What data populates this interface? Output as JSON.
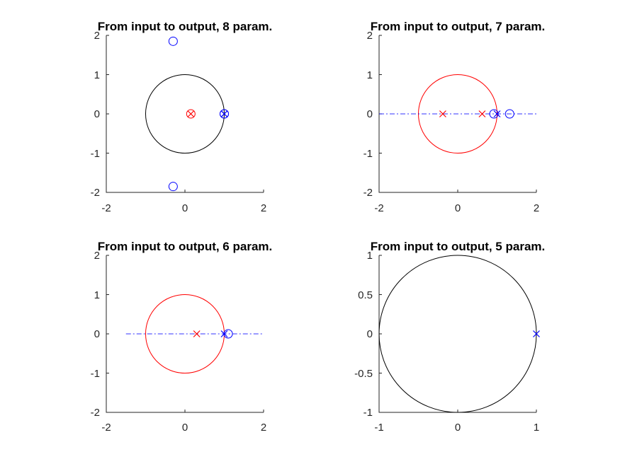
{
  "figure_background": "#ffffff",
  "chart_data": [
    {
      "type": "scatter",
      "title": "From input to output, 8 param.",
      "xlim": [
        -2,
        2
      ],
      "ylim": [
        -2,
        2
      ],
      "xticks": [
        "-2",
        "0",
        "2"
      ],
      "yticks": [
        "2",
        "1",
        "0",
        "-1",
        "-2"
      ],
      "grid": false,
      "unit_circle_color": "#000000",
      "real_axis_line": false,
      "zeros": {
        "color": "#0000ff",
        "points": [
          [
            -0.3,
            1.85
          ],
          [
            -0.3,
            -1.85
          ],
          [
            1.0,
            0.0
          ],
          [
            1.0,
            0.0
          ]
        ]
      },
      "poles": {
        "color": "#0000ff",
        "points": [
          [
            1.0,
            0.0
          ],
          [
            1.0,
            0.0
          ]
        ]
      },
      "red_zeros": {
        "color": "#ff0000",
        "points": [
          [
            0.15,
            0.0
          ]
        ]
      },
      "red_poles": {
        "color": "#ff0000",
        "points": [
          [
            0.15,
            0.0
          ]
        ]
      }
    },
    {
      "type": "scatter",
      "title": "From input to output, 7 param.",
      "xlim": [
        -2,
        2
      ],
      "ylim": [
        -2,
        2
      ],
      "xticks": [
        "-2",
        "0",
        "2"
      ],
      "yticks": [
        "2",
        "1",
        "0",
        "-1",
        "-2"
      ],
      "grid": false,
      "unit_circle_color": "#ff0000",
      "real_axis_line": true,
      "real_axis_range": [
        -2,
        2
      ],
      "zeros": {
        "color": "#0000ff",
        "points": [
          [
            0.92,
            0.0
          ],
          [
            1.32,
            0.0
          ]
        ]
      },
      "poles": {
        "color": "#0000ff",
        "points": [
          [
            1.0,
            0.0
          ]
        ]
      },
      "red_zeros": {
        "color": "#ff0000",
        "points": []
      },
      "red_poles": {
        "color": "#ff0000",
        "points": [
          [
            -0.38,
            0.0
          ],
          [
            0.62,
            0.0
          ]
        ]
      }
    },
    {
      "type": "scatter",
      "title": "From input to output, 6 param.",
      "xlim": [
        -2,
        2
      ],
      "ylim": [
        -2,
        2
      ],
      "xticks": [
        "-2",
        "0",
        "2"
      ],
      "yticks": [
        "2",
        "1",
        "0",
        "-1",
        "-2"
      ],
      "grid": false,
      "unit_circle_color": "#ff0000",
      "real_axis_line": true,
      "real_axis_range": [
        -1.5,
        2
      ],
      "zeros": {
        "color": "#0000ff",
        "points": [
          [
            1.1,
            0.0
          ]
        ]
      },
      "poles": {
        "color": "#0000ff",
        "points": [
          [
            1.0,
            0.0
          ]
        ]
      },
      "red_zeros": {
        "color": "#ff0000",
        "points": []
      },
      "red_poles": {
        "color": "#ff0000",
        "points": [
          [
            0.3,
            0.0
          ]
        ]
      }
    },
    {
      "type": "scatter",
      "title": "From input to output, 5 param.",
      "xlim": [
        -1,
        1
      ],
      "ylim": [
        -1,
        1
      ],
      "xticks": [
        "-1",
        "0",
        "1"
      ],
      "yticks": [
        "1",
        "0.5",
        "0",
        "-0.5",
        "-1"
      ],
      "grid": false,
      "unit_circle_color": "#000000",
      "real_axis_line": false,
      "zeros": {
        "color": "#0000ff",
        "points": []
      },
      "poles": {
        "color": "#0000ff",
        "points": [
          [
            1.0,
            0.0
          ]
        ]
      },
      "red_zeros": {
        "color": "#ff0000",
        "points": []
      },
      "red_poles": {
        "color": "#ff0000",
        "points": []
      }
    }
  ]
}
